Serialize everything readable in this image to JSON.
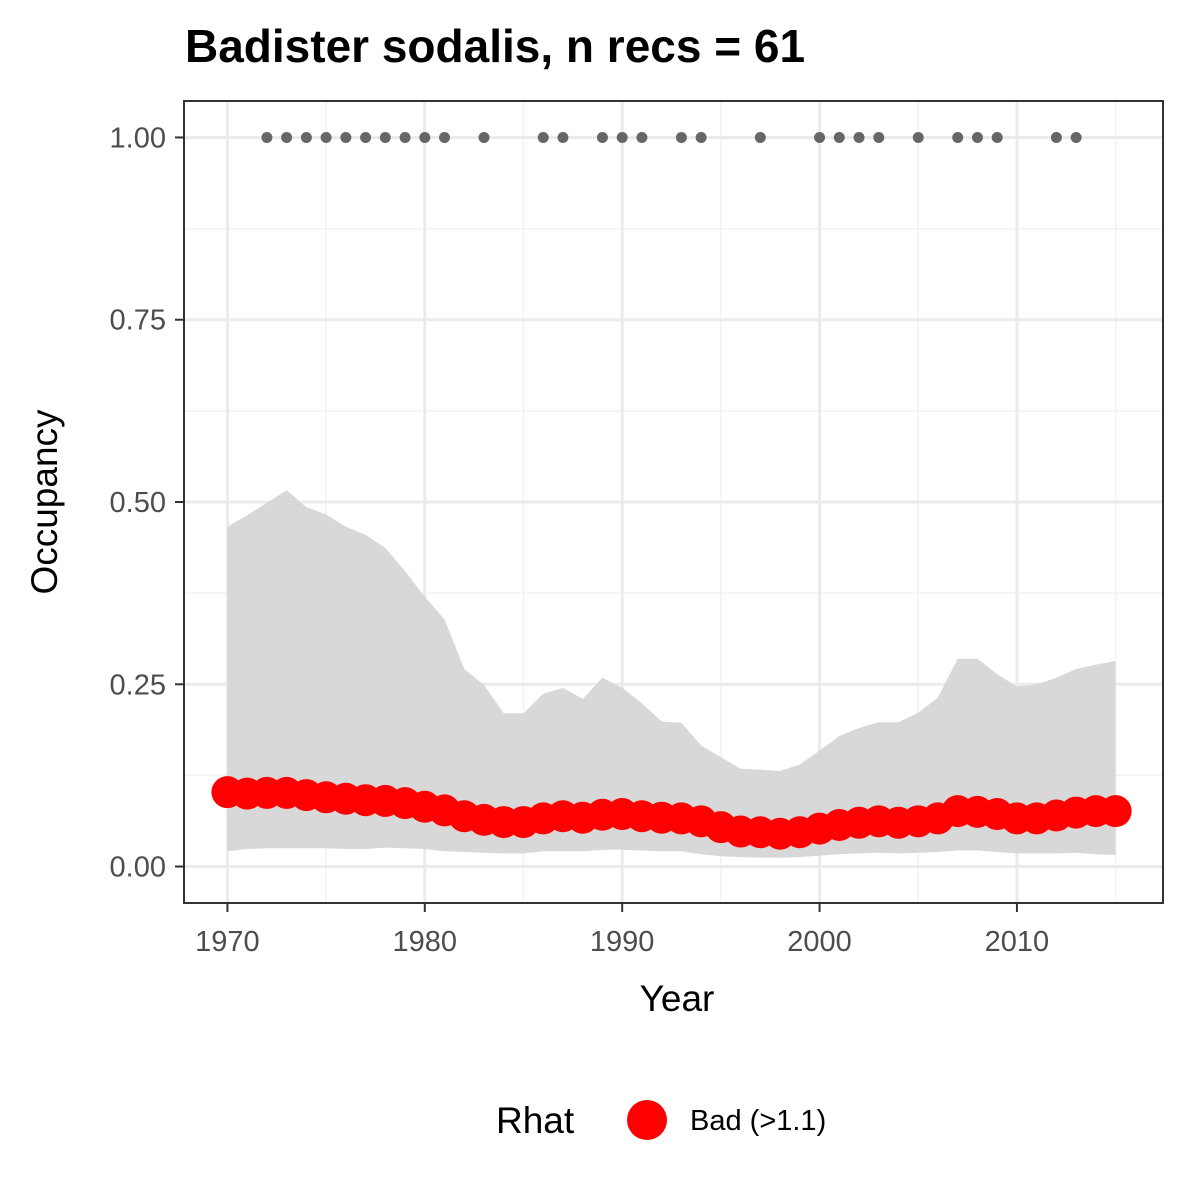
{
  "colors": {
    "point": "#ff0000",
    "ribbon": "#d6d6d6",
    "record_dot": "#666666",
    "grid_major": "#ebebeb",
    "grid_minor": "#f2f2f2",
    "panel_border": "#333333"
  },
  "chart_data": {
    "type": "line",
    "title": "Badister sodalis, n recs = 61",
    "xlabel": "Year",
    "ylabel": "Occupancy",
    "xlim": [
      1967.8,
      2017.4
    ],
    "ylim": [
      -0.05,
      1.05
    ],
    "x_ticks": [
      1970,
      1980,
      1990,
      2000,
      2010
    ],
    "x_tick_labels": [
      "1970",
      "1980",
      "1990",
      "2000",
      "2010"
    ],
    "y_ticks": [
      0,
      0.25,
      0.5,
      0.75,
      1.0
    ],
    "y_tick_labels": [
      "0.00",
      "0.25",
      "0.50",
      "0.75",
      "1.00"
    ],
    "grid": true,
    "legend": {
      "title": "Rhat",
      "position": "bottom",
      "entries": [
        {
          "label": "Bad (>1.1)",
          "color": "#ff0000"
        }
      ]
    },
    "x": [
      1970,
      1971,
      1972,
      1973,
      1974,
      1975,
      1976,
      1977,
      1978,
      1979,
      1980,
      1981,
      1982,
      1983,
      1984,
      1985,
      1986,
      1987,
      1988,
      1989,
      1990,
      1991,
      1992,
      1993,
      1994,
      1995,
      1996,
      1997,
      1998,
      1999,
      2000,
      2001,
      2002,
      2003,
      2004,
      2005,
      2006,
      2007,
      2008,
      2009,
      2010,
      2011,
      2012,
      2013,
      2014,
      2015
    ],
    "series": [
      {
        "role": "mean",
        "values": [
          0.102,
          0.1,
          0.101,
          0.101,
          0.098,
          0.095,
          0.093,
          0.091,
          0.09,
          0.087,
          0.082,
          0.077,
          0.069,
          0.064,
          0.061,
          0.061,
          0.066,
          0.069,
          0.067,
          0.071,
          0.072,
          0.069,
          0.067,
          0.066,
          0.062,
          0.054,
          0.048,
          0.047,
          0.045,
          0.047,
          0.052,
          0.057,
          0.06,
          0.062,
          0.06,
          0.062,
          0.066,
          0.076,
          0.075,
          0.072,
          0.066,
          0.066,
          0.07,
          0.074,
          0.076,
          0.076
        ]
      },
      {
        "role": "upper",
        "values": [
          0.466,
          0.482,
          0.499,
          0.516,
          0.493,
          0.483,
          0.466,
          0.455,
          0.437,
          0.405,
          0.37,
          0.339,
          0.271,
          0.249,
          0.21,
          0.21,
          0.237,
          0.245,
          0.23,
          0.259,
          0.245,
          0.224,
          0.199,
          0.197,
          0.166,
          0.15,
          0.134,
          0.133,
          0.131,
          0.14,
          0.159,
          0.179,
          0.19,
          0.198,
          0.198,
          0.211,
          0.232,
          0.285,
          0.285,
          0.264,
          0.247,
          0.25,
          0.259,
          0.271,
          0.277,
          0.282
        ]
      },
      {
        "role": "lower",
        "values": [
          0.021,
          0.024,
          0.025,
          0.025,
          0.025,
          0.025,
          0.024,
          0.024,
          0.026,
          0.025,
          0.024,
          0.021,
          0.02,
          0.019,
          0.018,
          0.018,
          0.021,
          0.021,
          0.021,
          0.023,
          0.023,
          0.022,
          0.021,
          0.021,
          0.017,
          0.014,
          0.013,
          0.012,
          0.012,
          0.013,
          0.015,
          0.017,
          0.018,
          0.019,
          0.018,
          0.019,
          0.02,
          0.022,
          0.022,
          0.02,
          0.018,
          0.018,
          0.018,
          0.019,
          0.017,
          0.016
        ]
      }
    ],
    "records": {
      "y": 1.0,
      "years": [
        1972,
        1973,
        1974,
        1975,
        1976,
        1977,
        1978,
        1979,
        1980,
        1981,
        1983,
        1986,
        1987,
        1989,
        1990,
        1991,
        1993,
        1994,
        1997,
        2000,
        2001,
        2002,
        2003,
        2005,
        2007,
        2008,
        2009,
        2012,
        2013
      ]
    }
  }
}
